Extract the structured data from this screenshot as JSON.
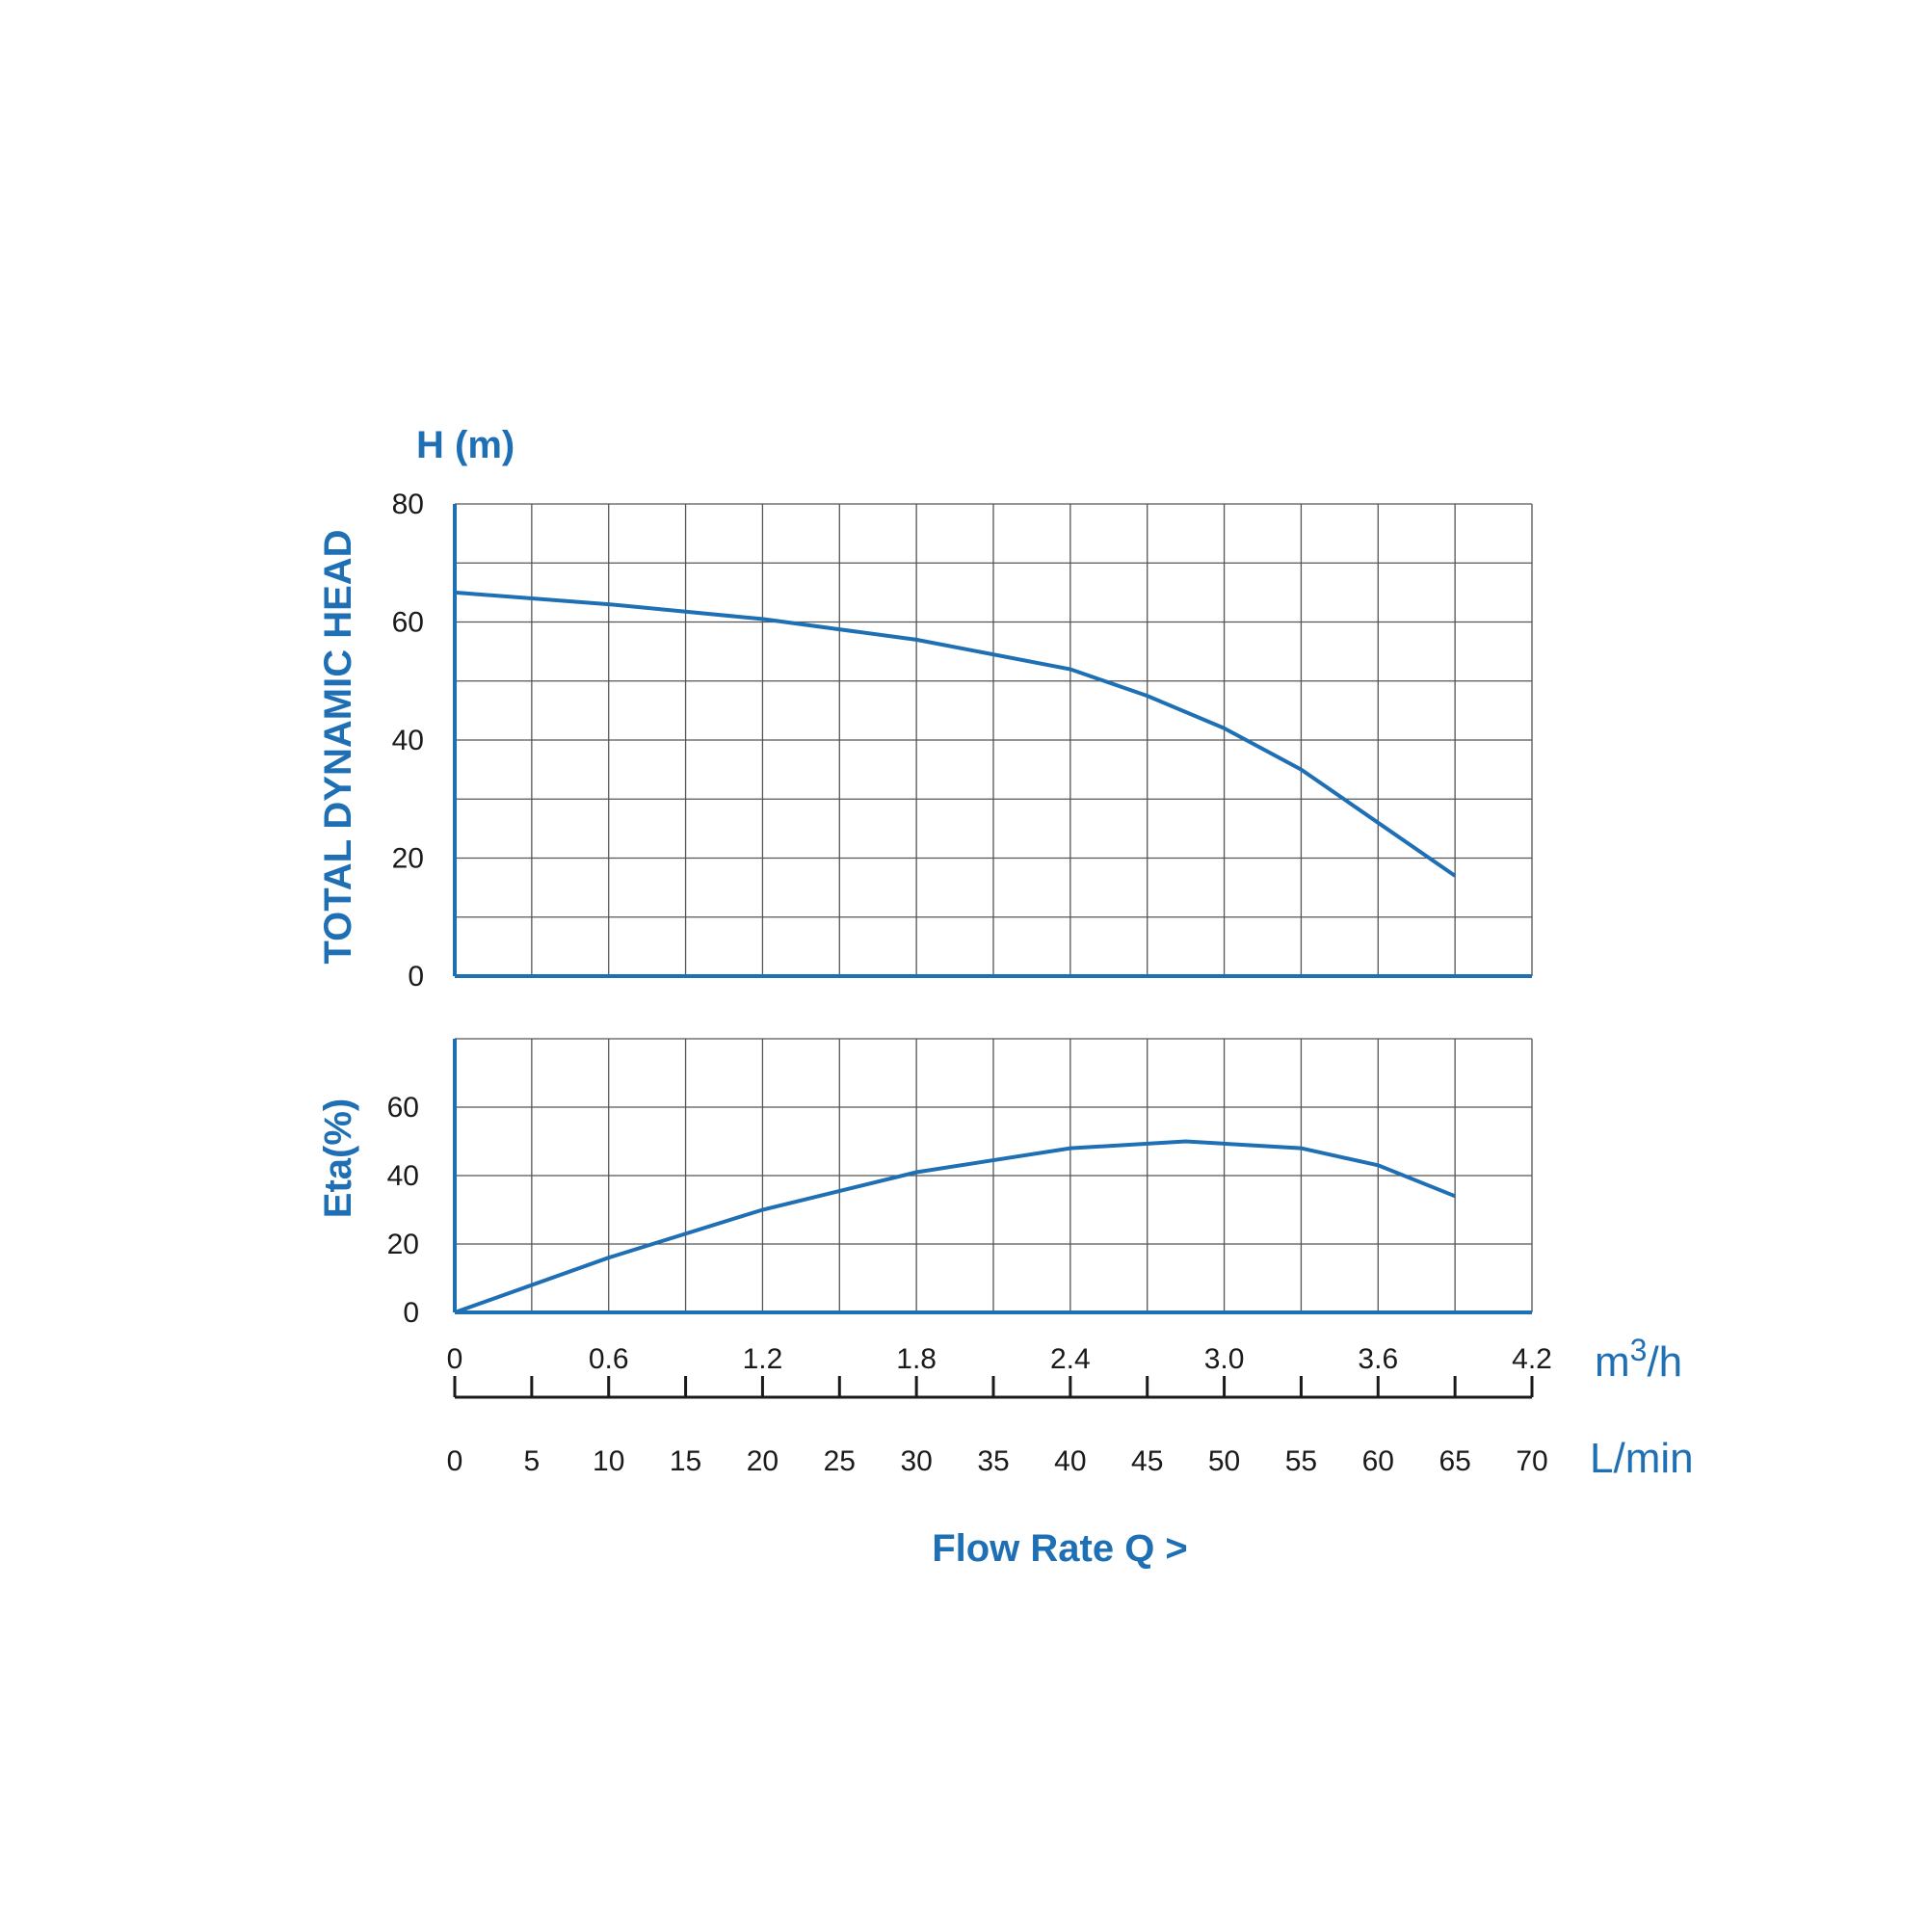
{
  "colors": {
    "accent": "#1f6fb5",
    "grid": "#555555",
    "text": "#1a1a1a"
  },
  "chart_data": [
    {
      "type": "line",
      "ylabel": "TOTAL DYNAMIC HEAD",
      "yunit": "H (m)",
      "ylim": [
        0,
        80
      ],
      "yticks": [
        "0",
        "20",
        "40",
        "60",
        "80"
      ],
      "xlim": [
        0,
        4.2
      ],
      "grid": true,
      "series": [
        {
          "x": [
            0,
            0.6,
            1.2,
            1.8,
            2.4,
            2.7,
            3.0,
            3.3,
            3.6,
            3.9
          ],
          "y": [
            65,
            63,
            60.5,
            57,
            52,
            47.5,
            42,
            35,
            26,
            17
          ]
        }
      ]
    },
    {
      "type": "line",
      "ylabel": "Eta(%)",
      "ylim": [
        0,
        80
      ],
      "yticks": [
        "0",
        "20",
        "40",
        "60"
      ],
      "xlim": [
        0,
        4.2
      ],
      "grid": true,
      "series": [
        {
          "x": [
            0,
            0.6,
            1.2,
            1.8,
            2.4,
            2.85,
            3.3,
            3.6,
            3.9
          ],
          "y": [
            0,
            16,
            30,
            41,
            48,
            50,
            48,
            43,
            34
          ]
        }
      ]
    }
  ],
  "x_axis_m3h": {
    "unit_base": "m",
    "unit_sup": "3",
    "unit_rest": "/h",
    "ticks": [
      "0",
      "0.6",
      "1.2",
      "1.8",
      "2.4",
      "3.0",
      "3.6",
      "4.2"
    ]
  },
  "x_axis_lmin": {
    "unit": "L/min",
    "ticks": [
      "0",
      "5",
      "10",
      "15",
      "20",
      "25",
      "30",
      "35",
      "40",
      "45",
      "50",
      "55",
      "60",
      "65",
      "70"
    ]
  },
  "x_title": "Flow Rate Q >"
}
